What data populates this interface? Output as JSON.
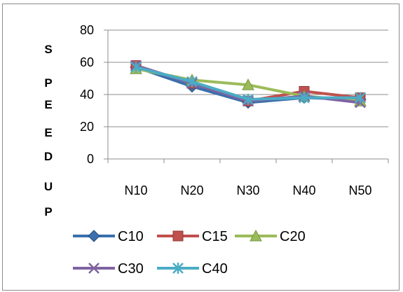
{
  "chart_data": {
    "type": "line",
    "categories": [
      "N10",
      "N20",
      "N30",
      "N40",
      "N50"
    ],
    "ylabel": "SPEEDUP",
    "ylabel_letters": [
      "S",
      "P",
      "E",
      "E",
      "D",
      "U",
      "P"
    ],
    "ylim": [
      0,
      80
    ],
    "yticks": [
      0,
      20,
      40,
      60,
      80
    ],
    "grid": "horizontal",
    "legend_position": "bottom",
    "series": [
      {
        "name": "C10",
        "values": [
          57,
          45,
          35,
          38,
          37
        ],
        "color": "#3b6fad",
        "marker": "diamond"
      },
      {
        "name": "C15",
        "values": [
          58,
          47,
          36,
          42,
          38
        ],
        "color": "#c0504d",
        "marker": "square"
      },
      {
        "name": "C20",
        "values": [
          56,
          49,
          46,
          39,
          36
        ],
        "color": "#9bbb59",
        "marker": "triangle"
      },
      {
        "name": "C30",
        "values": [
          58,
          47,
          36,
          39,
          35
        ],
        "color": "#7f63a2",
        "marker": "x"
      },
      {
        "name": "C40",
        "values": [
          57,
          48,
          37,
          38,
          38
        ],
        "color": "#4bacc6",
        "marker": "star"
      }
    ]
  }
}
